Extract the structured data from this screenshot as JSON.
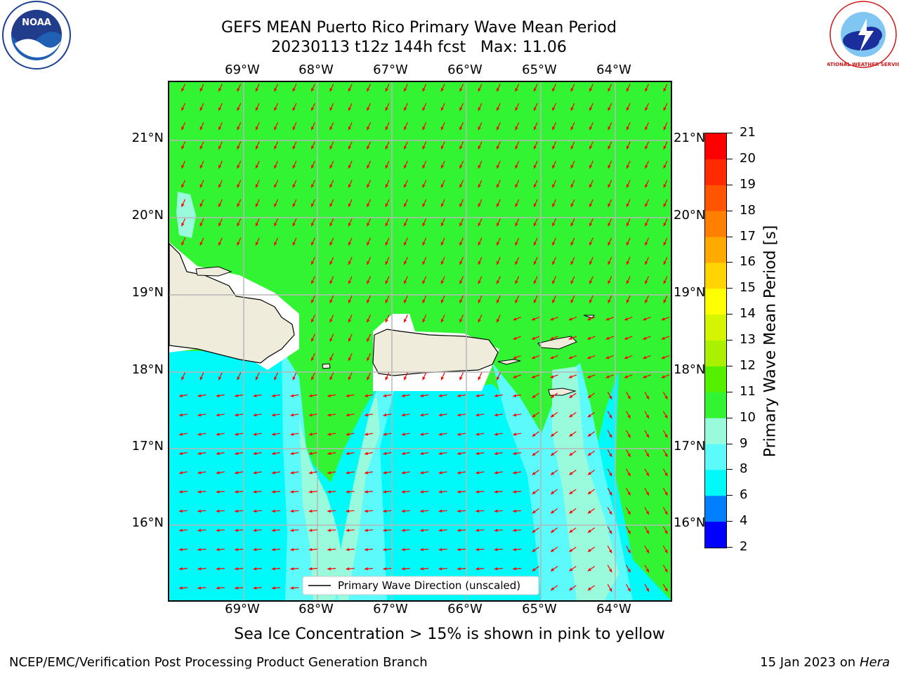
{
  "title": {
    "line1": "GEFS MEAN Puerto Rico Primary Wave Mean Period",
    "line2": "20230113 t12z 144h fcst   Max: 11.06"
  },
  "map": {
    "lon_labels": [
      "69°W",
      "68°W",
      "67°W",
      "66°W",
      "65°W",
      "64°W"
    ],
    "lat_labels": [
      "21°N",
      "20°N",
      "19°N",
      "18°N",
      "17°N",
      "16°N"
    ],
    "legend_label": "Primary Wave Direction (unscaled)",
    "colors": {
      "land": "#efecdc",
      "green": "#33f433",
      "cyan": "#00fafa",
      "light_cyan": "#5cfafa",
      "aqua": "#99fadc",
      "arrow": "#ff0000",
      "grid": "#b8b8b8"
    }
  },
  "colorbar": {
    "label": "Primary Wave Mean Period [s]",
    "ticks": [
      "21",
      "20",
      "19",
      "18",
      "17",
      "16",
      "15",
      "14",
      "13",
      "12",
      "11",
      "10",
      "9",
      "8",
      "6",
      "4",
      "2"
    ],
    "colors": [
      "#ff0000",
      "#ff2a00",
      "#ff5500",
      "#ff7f00",
      "#ffaa00",
      "#ffd400",
      "#ffff00",
      "#d4f400",
      "#aaf000",
      "#55f000",
      "#33f433",
      "#99fadc",
      "#5cfafa",
      "#00fafa",
      "#0080ff",
      "#0000ff"
    ]
  },
  "caption": "Sea Ice Concentration > 15% is shown in pink to yellow",
  "footer": {
    "left": "NCEP/EMC/Verification Post Processing Product Generation Branch",
    "right_prefix": "15 Jan 2023 on ",
    "right_host": "Hera"
  },
  "logos": {
    "left_text": "NOAA",
    "right_text": "NATIONAL WEATHER SERVICE"
  }
}
